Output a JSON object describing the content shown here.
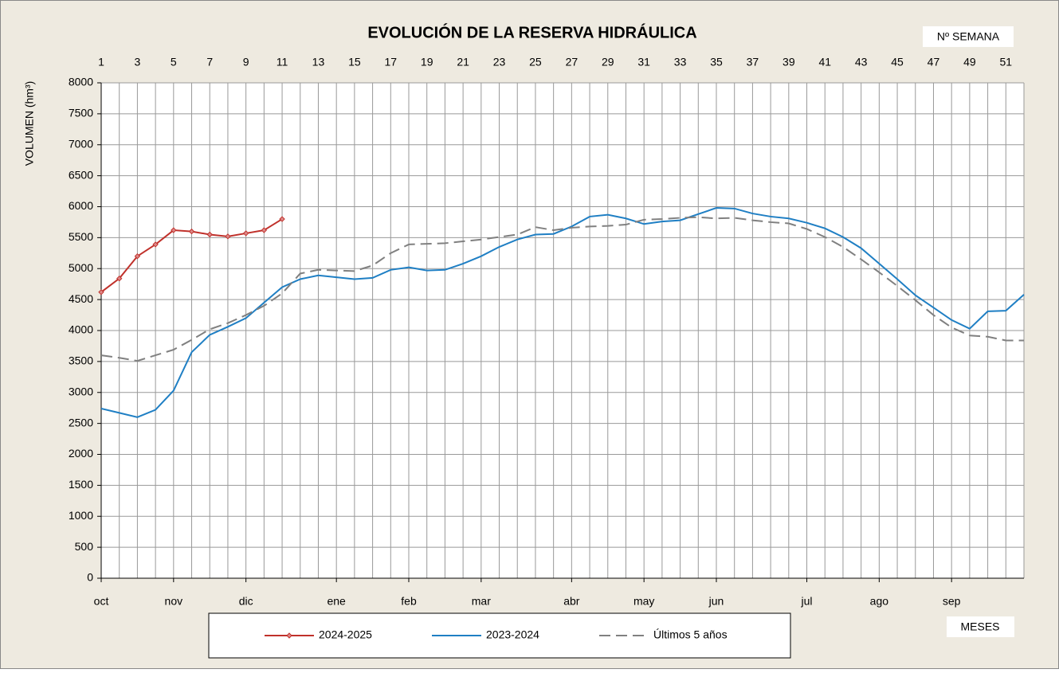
{
  "chart_data": {
    "type": "line",
    "title": "EVOLUCIÓN DE LA RESERVA HIDRÁULICA",
    "ylabel": "VOLUMEN (hm³)",
    "top_axis_label": "Nº SEMANA",
    "month_axis_label": "MESES",
    "x": [
      1,
      2,
      3,
      4,
      5,
      6,
      7,
      8,
      9,
      10,
      11,
      12,
      13,
      14,
      15,
      16,
      17,
      18,
      19,
      20,
      21,
      22,
      23,
      24,
      25,
      26,
      27,
      28,
      29,
      30,
      31,
      32,
      33,
      34,
      35,
      36,
      37,
      38,
      39,
      40,
      41,
      42,
      43,
      44,
      45,
      46,
      47,
      48,
      49,
      50,
      51,
      52
    ],
    "xlim": [
      1,
      52
    ],
    "xticks": [
      1,
      3,
      5,
      7,
      9,
      11,
      13,
      15,
      17,
      19,
      21,
      23,
      25,
      27,
      29,
      31,
      33,
      35,
      37,
      39,
      41,
      43,
      45,
      47,
      49,
      51
    ],
    "x_minor_ticks": [
      2,
      4,
      6,
      8,
      10,
      12,
      14,
      16,
      18,
      20,
      22,
      24,
      26,
      28,
      30,
      32,
      34,
      36,
      38,
      40,
      42,
      44,
      46,
      48,
      50,
      52
    ],
    "month_ticks": [
      {
        "value": 1,
        "label": "oct"
      },
      {
        "value": 5,
        "label": "nov"
      },
      {
        "value": 9,
        "label": "dic"
      },
      {
        "value": 14,
        "label": "ene"
      },
      {
        "value": 18,
        "label": "feb"
      },
      {
        "value": 22,
        "label": "mar"
      },
      {
        "value": 27,
        "label": "abr"
      },
      {
        "value": 31,
        "label": "may"
      },
      {
        "value": 35,
        "label": "jun"
      },
      {
        "value": 40,
        "label": "jul"
      },
      {
        "value": 44,
        "label": "ago"
      },
      {
        "value": 48,
        "label": "sep"
      }
    ],
    "ylim": [
      0,
      8000
    ],
    "yticks": [
      0,
      500,
      1000,
      1500,
      2000,
      2500,
      3000,
      3500,
      4000,
      4500,
      5000,
      5500,
      6000,
      6500,
      7000,
      7500,
      8000
    ],
    "grid": true,
    "series": [
      {
        "name": "2024-2025",
        "color": "#c0312b",
        "style": "solid",
        "marker": "diamond",
        "values": [
          4620,
          4840,
          5200,
          5390,
          5620,
          5600,
          5550,
          5520,
          5570,
          5620,
          5800,
          null,
          null,
          null,
          null,
          null,
          null,
          null,
          null,
          null,
          null,
          null,
          null,
          null,
          null,
          null,
          null,
          null,
          null,
          null,
          null,
          null,
          null,
          null,
          null,
          null,
          null,
          null,
          null,
          null,
          null,
          null,
          null,
          null,
          null,
          null,
          null,
          null,
          null,
          null,
          null,
          null
        ]
      },
      {
        "name": "2023-2024",
        "color": "#1f7fc4",
        "style": "solid",
        "values": [
          2740,
          2670,
          2600,
          2720,
          3030,
          3650,
          3930,
          4060,
          4200,
          4450,
          4700,
          4830,
          4890,
          4860,
          4830,
          4850,
          4980,
          5020,
          4970,
          4980,
          5080,
          5200,
          5350,
          5470,
          5550,
          5560,
          5680,
          5840,
          5870,
          5810,
          5720,
          5760,
          5780,
          5880,
          5980,
          5970,
          5890,
          5840,
          5810,
          5740,
          5650,
          5510,
          5330,
          5080,
          4830,
          4570,
          4370,
          4170,
          4030,
          4310,
          4320,
          4580
        ]
      },
      {
        "name": "Últimos 5 años",
        "color": "#808080",
        "style": "dashed",
        "values": [
          3600,
          3560,
          3510,
          3600,
          3690,
          3850,
          4020,
          4120,
          4250,
          4400,
          4600,
          4920,
          4980,
          4970,
          4960,
          5050,
          5250,
          5390,
          5400,
          5410,
          5440,
          5470,
          5510,
          5550,
          5670,
          5620,
          5660,
          5680,
          5690,
          5710,
          5790,
          5800,
          5820,
          5830,
          5810,
          5820,
          5780,
          5750,
          5730,
          5640,
          5510,
          5350,
          5150,
          4940,
          4720,
          4490,
          4250,
          4050,
          3920,
          3900,
          3840,
          3840
        ]
      }
    ]
  }
}
